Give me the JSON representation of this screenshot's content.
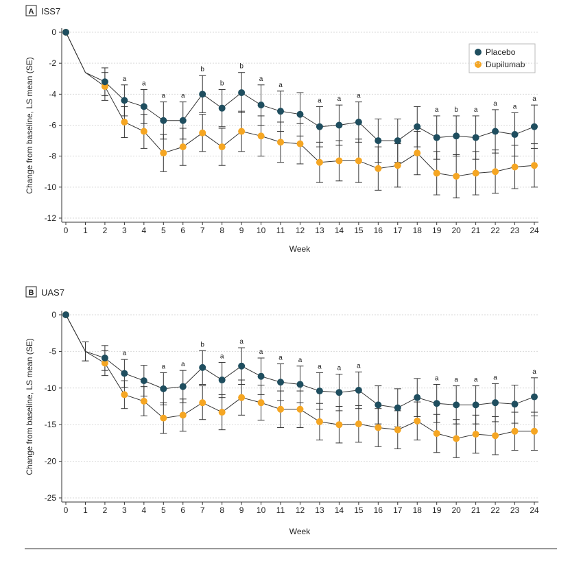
{
  "figure": {
    "accent_placebo": "#1f4e5f",
    "accent_dupilumab": "#f5a623",
    "axis_color": "#333333"
  },
  "chart_data": [
    {
      "panel_letter": "A",
      "panel_title": "ISS7",
      "type": "line",
      "xlabel": "Week",
      "ylabel": "Change from baseline, LS mean (SE)",
      "xlim": [
        0,
        24
      ],
      "ylim": [
        -12,
        0
      ],
      "yticks": [
        0,
        -2,
        -4,
        -6,
        -8,
        -10,
        -12
      ],
      "x": [
        0,
        1,
        2,
        3,
        4,
        5,
        6,
        7,
        8,
        9,
        10,
        11,
        12,
        13,
        14,
        15,
        16,
        17,
        18,
        19,
        20,
        21,
        22,
        23,
        24
      ],
      "legend": {
        "placement": "top-right",
        "entries": [
          "Placebo",
          "Dupilumab"
        ]
      },
      "series": [
        {
          "name": "Placebo",
          "color": "#1f4e5f",
          "values": [
            0,
            -2.6,
            -3.2,
            -4.4,
            -4.8,
            -5.7,
            -5.7,
            -4.0,
            -4.9,
            -3.9,
            -4.7,
            -5.1,
            -5.3,
            -6.1,
            -6.0,
            -5.8,
            -7.0,
            -7.0,
            -6.1,
            -6.8,
            -6.7,
            -6.8,
            -6.4,
            -6.6,
            -6.1
          ],
          "se": [
            0,
            0,
            0.9,
            1.0,
            1.1,
            1.2,
            1.2,
            1.2,
            1.2,
            1.3,
            1.3,
            1.3,
            1.4,
            1.3,
            1.3,
            1.3,
            1.4,
            1.4,
            1.3,
            1.4,
            1.3,
            1.4,
            1.4,
            1.4,
            1.4
          ]
        },
        {
          "name": "Dupilumab",
          "color": "#f5a623",
          "values": [
            0,
            -2.6,
            -3.5,
            -5.8,
            -6.4,
            -7.8,
            -7.4,
            -6.5,
            -7.4,
            -6.4,
            -6.7,
            -7.1,
            -7.2,
            -8.4,
            -8.3,
            -8.3,
            -8.8,
            -8.6,
            -7.8,
            -9.1,
            -9.3,
            -9.1,
            -9.0,
            -8.7,
            -8.6
          ],
          "se": [
            0,
            0,
            0.9,
            1.0,
            1.1,
            1.2,
            1.2,
            1.2,
            1.2,
            1.3,
            1.3,
            1.3,
            1.3,
            1.3,
            1.3,
            1.4,
            1.4,
            1.4,
            1.4,
            1.4,
            1.4,
            1.4,
            1.4,
            1.4,
            1.4
          ]
        }
      ],
      "annotations": [
        {
          "x": 3,
          "text": "a"
        },
        {
          "x": 4,
          "text": "a"
        },
        {
          "x": 5,
          "text": "a"
        },
        {
          "x": 6,
          "text": "a"
        },
        {
          "x": 7,
          "text": "b"
        },
        {
          "x": 8,
          "text": "b"
        },
        {
          "x": 9,
          "text": "b"
        },
        {
          "x": 10,
          "text": "a"
        },
        {
          "x": 11,
          "text": "a"
        },
        {
          "x": 13,
          "text": "a"
        },
        {
          "x": 14,
          "text": "a"
        },
        {
          "x": 15,
          "text": "a"
        },
        {
          "x": 19,
          "text": "a"
        },
        {
          "x": 20,
          "text": "b"
        },
        {
          "x": 21,
          "text": "a"
        },
        {
          "x": 22,
          "text": "a"
        },
        {
          "x": 23,
          "text": "a"
        },
        {
          "x": 24,
          "text": "a"
        }
      ]
    },
    {
      "panel_letter": "B",
      "panel_title": "UAS7",
      "type": "line",
      "xlabel": "Week",
      "ylabel": "Change from baseline, LS mean (SE)",
      "xlim": [
        0,
        24
      ],
      "ylim": [
        -25,
        0
      ],
      "yticks": [
        0,
        -5,
        -10,
        -15,
        -20,
        -25
      ],
      "x": [
        0,
        1,
        2,
        3,
        4,
        5,
        6,
        7,
        8,
        9,
        10,
        11,
        12,
        13,
        14,
        15,
        16,
        17,
        18,
        19,
        20,
        21,
        22,
        23,
        24
      ],
      "legend": null,
      "series": [
        {
          "name": "Placebo",
          "color": "#1f4e5f",
          "values": [
            0,
            -5.0,
            -5.9,
            -8.0,
            -9.0,
            -10.1,
            -9.8,
            -7.2,
            -8.9,
            -7.0,
            -8.4,
            -9.2,
            -9.5,
            -10.4,
            -10.6,
            -10.3,
            -12.3,
            -12.7,
            -11.3,
            -12.1,
            -12.3,
            -12.3,
            -12.0,
            -12.2,
            -11.2
          ],
          "se": [
            0,
            1.3,
            1.7,
            1.9,
            2.1,
            2.2,
            2.2,
            2.3,
            2.4,
            2.5,
            2.5,
            2.5,
            2.5,
            2.5,
            2.5,
            2.5,
            2.6,
            2.6,
            2.6,
            2.6,
            2.6,
            2.6,
            2.6,
            2.6,
            2.6
          ]
        },
        {
          "name": "Dupilumab",
          "color": "#f5a623",
          "values": [
            0,
            -5.0,
            -6.6,
            -10.9,
            -11.8,
            -14.1,
            -13.7,
            -12.0,
            -13.3,
            -11.3,
            -12.0,
            -12.9,
            -12.9,
            -14.6,
            -15.0,
            -14.9,
            -15.4,
            -15.7,
            -14.5,
            -16.2,
            -16.9,
            -16.3,
            -16.5,
            -15.9,
            -15.9
          ],
          "se": [
            0,
            1.3,
            1.7,
            1.9,
            2.0,
            2.1,
            2.2,
            2.3,
            2.4,
            2.4,
            2.4,
            2.5,
            2.5,
            2.5,
            2.5,
            2.5,
            2.6,
            2.6,
            2.6,
            2.6,
            2.6,
            2.6,
            2.6,
            2.6,
            2.6
          ]
        }
      ],
      "annotations": [
        {
          "x": 3,
          "text": "a"
        },
        {
          "x": 5,
          "text": "a"
        },
        {
          "x": 6,
          "text": "a"
        },
        {
          "x": 7,
          "text": "b"
        },
        {
          "x": 8,
          "text": "a"
        },
        {
          "x": 9,
          "text": "a"
        },
        {
          "x": 10,
          "text": "a"
        },
        {
          "x": 11,
          "text": "a"
        },
        {
          "x": 12,
          "text": "a"
        },
        {
          "x": 13,
          "text": "a"
        },
        {
          "x": 14,
          "text": "a"
        },
        {
          "x": 15,
          "text": "a"
        },
        {
          "x": 19,
          "text": "a"
        },
        {
          "x": 20,
          "text": "a"
        },
        {
          "x": 21,
          "text": "a"
        },
        {
          "x": 22,
          "text": "a"
        },
        {
          "x": 24,
          "text": "a"
        }
      ]
    }
  ]
}
